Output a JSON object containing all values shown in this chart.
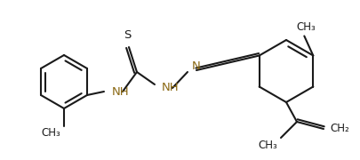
{
  "bg_color": "#ffffff",
  "line_color": "#1a1a1a",
  "lw": 1.5,
  "fs_label": 9.5,
  "fs_small": 8.5,
  "label_color": "#8B6914",
  "text_color": "#1a1a1a",
  "fig_width": 4.05,
  "fig_height": 1.8,
  "dpi": 100,
  "xlim": [
    0,
    4.05
  ],
  "ylim": [
    0,
    1.8
  ]
}
